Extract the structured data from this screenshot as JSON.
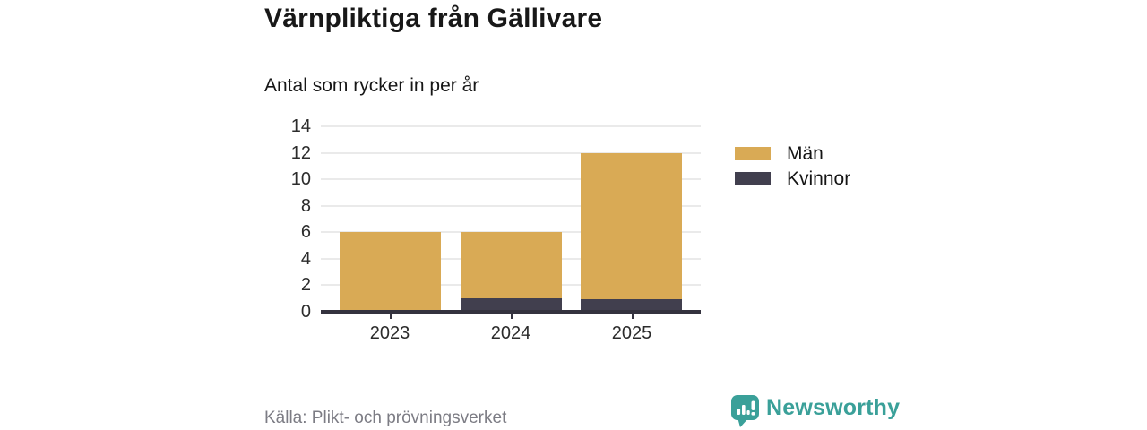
{
  "header": {
    "title": "Värnpliktiga från Gällivare",
    "subtitle": "Antal som rycker in per år"
  },
  "chart_data": {
    "type": "bar",
    "stacked": true,
    "title": "Värnpliktiga från Gällivare",
    "subtitle": "Antal som rycker in per år",
    "xlabel": "",
    "ylabel": "",
    "categories": [
      "2023",
      "2024",
      "2025"
    ],
    "series": [
      {
        "name": "Män",
        "color": "#d9aa55",
        "values": [
          6,
          5,
          11
        ]
      },
      {
        "name": "Kvinnor",
        "color": "#413f4e",
        "values": [
          0,
          1,
          1
        ]
      }
    ],
    "stack_order_bottom_to_top": [
      "Kvinnor",
      "Män"
    ],
    "totals": [
      6,
      6,
      12
    ],
    "ylim": [
      0,
      14
    ],
    "yticks": [
      0,
      2,
      4,
      6,
      8,
      10,
      12,
      14
    ],
    "grid": "horizontal",
    "legend_position": "right"
  },
  "footer": {
    "source": "Källa: Plikt- och prövningsverket",
    "brand": "Newsworthy",
    "brand_icon": "speech-bubble-bar-chart-icon"
  },
  "colors": {
    "men": "#d9aa55",
    "women": "#413f4e",
    "axis": "#34323e",
    "grid": "#eaeaea",
    "brand_teal": "#3aa099",
    "source_text": "#7c7c84",
    "title_text": "#181818"
  }
}
